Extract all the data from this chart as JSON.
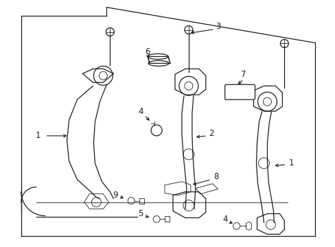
{
  "background_color": "#ffffff",
  "line_color": "#1a1a1a",
  "label_color": "#000000",
  "figsize": [
    4.89,
    3.6
  ],
  "dpi": 100,
  "lw_main": 0.9,
  "lw_thin": 0.6,
  "font_size": 8.5
}
